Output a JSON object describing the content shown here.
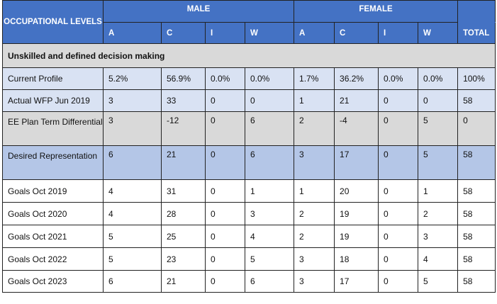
{
  "header": {
    "occupational_levels": "OCCUPATIONAL LEVELS",
    "male": "MALE",
    "female": "FEMALE",
    "columns": [
      "A",
      "C",
      "I",
      "W",
      "A",
      "C",
      "I",
      "W",
      "TOTAL"
    ]
  },
  "section_title": "Unskilled and defined decision making",
  "rows": [
    {
      "label": "Current Profile",
      "values": [
        "5.2%",
        "56.9%",
        "0.0%",
        "0.0%",
        "1.7%",
        "36.2%",
        "0.0%",
        "0.0%",
        "100%"
      ]
    },
    {
      "label": "Actual WFP Jun 2019",
      "values": [
        "3",
        "33",
        "0",
        "0",
        "1",
        "21",
        "0",
        "0",
        "58"
      ]
    },
    {
      "label": "EE Plan Term Differential",
      "values": [
        "3",
        "-12",
        "0",
        "6",
        "2",
        "-4",
        "0",
        "5",
        "0"
      ]
    },
    {
      "label": "Desired Representation",
      "values": [
        "6",
        "21",
        "0",
        "6",
        "3",
        "17",
        "0",
        "5",
        "58"
      ]
    },
    {
      "label": "Goals Oct 2019",
      "values": [
        "4",
        "31",
        "0",
        "1",
        "1",
        "20",
        "0",
        "1",
        "58"
      ]
    },
    {
      "label": "Goals Oct 2020",
      "values": [
        "4",
        "28",
        "0",
        "3",
        "2",
        "19",
        "0",
        "2",
        "58"
      ]
    },
    {
      "label": "Goals Oct 2021",
      "values": [
        "5",
        "25",
        "0",
        "4",
        "2",
        "19",
        "0",
        "3",
        "58"
      ]
    },
    {
      "label": "Goals Oct 2022",
      "values": [
        "5",
        "23",
        "0",
        "5",
        "3",
        "18",
        "0",
        "4",
        "58"
      ]
    },
    {
      "label": "Goals Oct 2023",
      "values": [
        "6",
        "21",
        "0",
        "6",
        "3",
        "17",
        "0",
        "5",
        "58"
      ]
    }
  ],
  "colors": {
    "header": "#4472c4",
    "section": "#d9d9d9",
    "light_blue": "#d9e2f3",
    "mid_blue": "#b4c6e7"
  }
}
